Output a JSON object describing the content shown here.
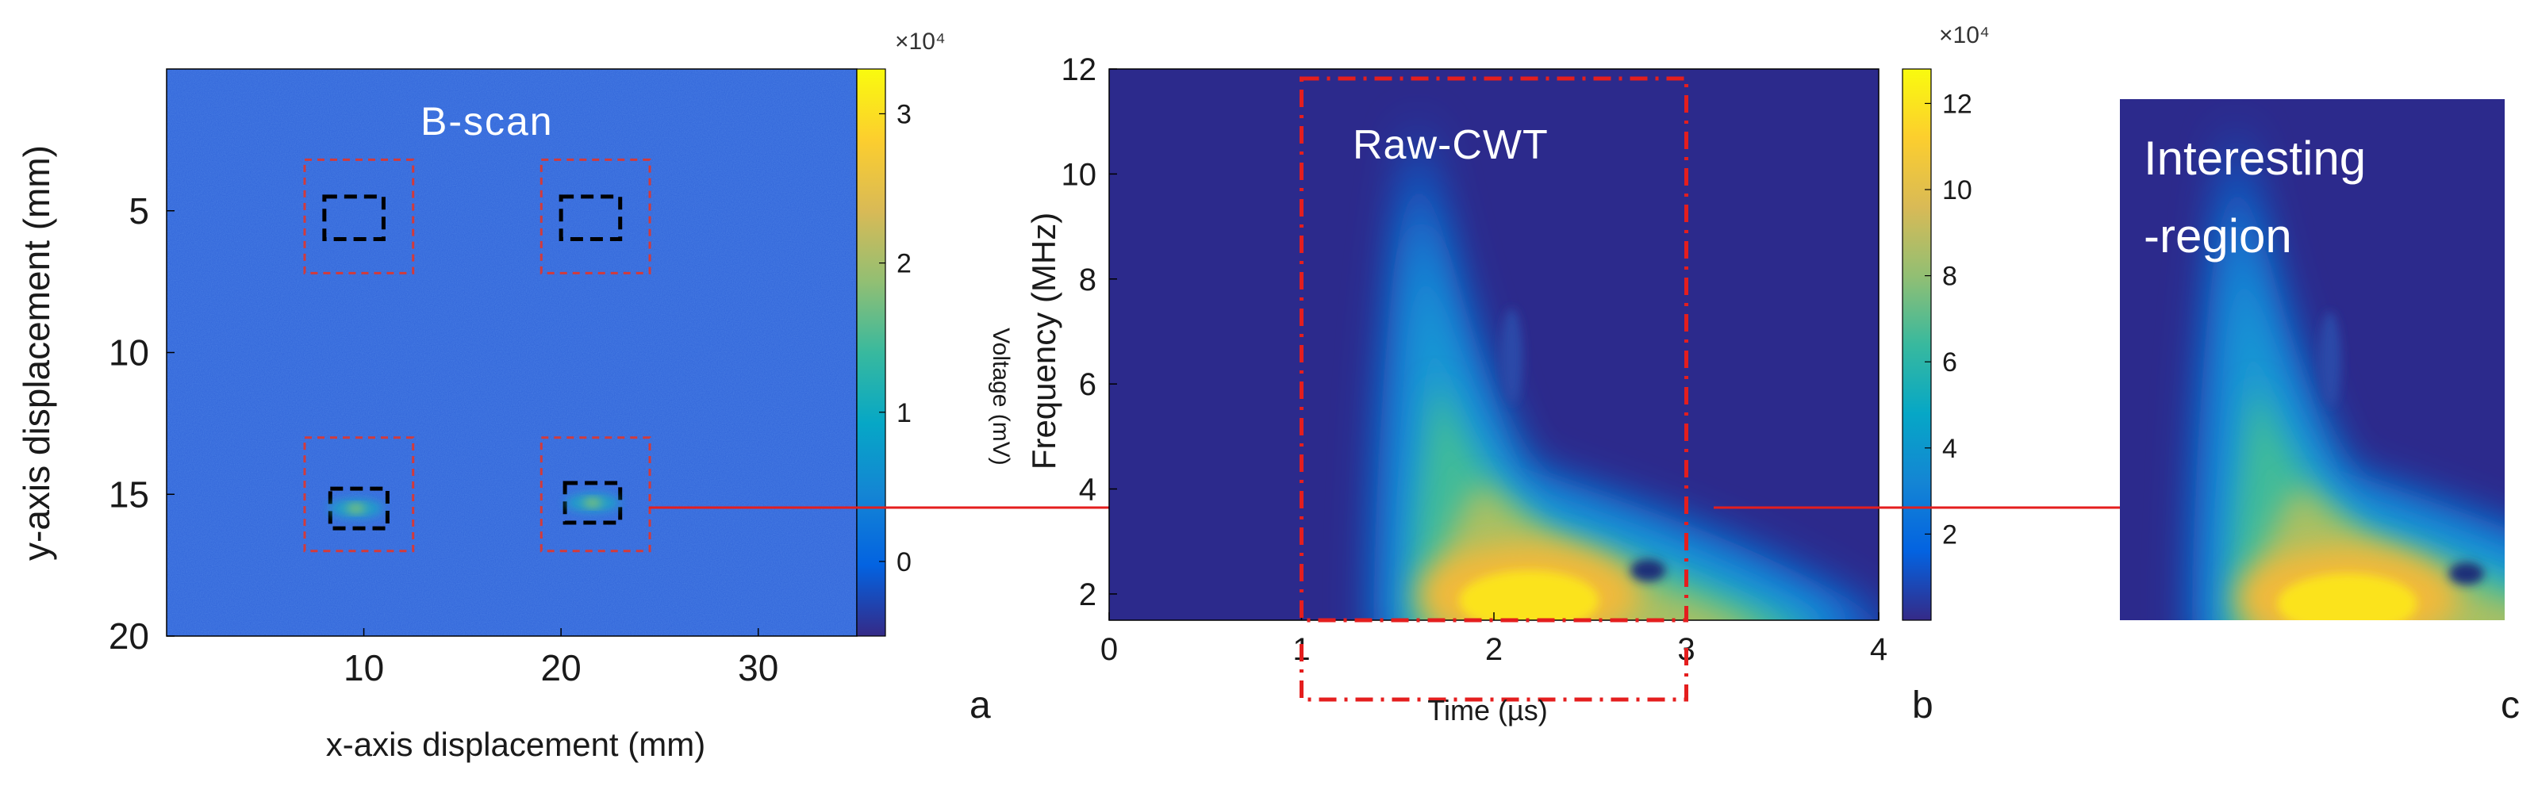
{
  "colors": {
    "bscan_background": "#2e62d8",
    "cwt_background": "#2c2a8c",
    "arrow": "#e41e1e",
    "roi_box": "#d33a3a",
    "inner_box": "#000000",
    "overlay_text": "#ffffff",
    "colormap": [
      "#352a87",
      "#0363e1",
      "#1485d4",
      "#06a7c6",
      "#38b99e",
      "#92bf73",
      "#d9ba56",
      "#fcce2e",
      "#f9fb0e"
    ]
  },
  "chart_data": [
    {
      "id": "a",
      "type": "heatmap",
      "panel_label": "a",
      "title": "B-scan",
      "xlabel": "x-axis displacement (mm)",
      "ylabel": "y-axis displacement (mm)",
      "xlim": [
        0,
        35
      ],
      "ylim": [
        20,
        0
      ],
      "xticks": [
        10,
        20,
        30
      ],
      "yticks": [
        5,
        10,
        15,
        20
      ],
      "defect_regions": [
        {
          "x": [
            7,
            12.5
          ],
          "y": [
            3.2,
            7.2
          ]
        },
        {
          "x": [
            19,
            24.5
          ],
          "y": [
            3.2,
            7.2
          ]
        },
        {
          "x": [
            7,
            12.5
          ],
          "y": [
            13,
            17
          ]
        },
        {
          "x": [
            19,
            24.5
          ],
          "y": [
            13,
            17
          ]
        }
      ],
      "defect_cores": [
        {
          "x": [
            8,
            11
          ],
          "y": [
            4.5,
            6
          ]
        },
        {
          "x": [
            20,
            23
          ],
          "y": [
            4.5,
            6
          ]
        },
        {
          "x": [
            8.3,
            11.2
          ],
          "y": [
            14.8,
            16.2
          ]
        },
        {
          "x": [
            20.2,
            23
          ],
          "y": [
            14.6,
            16
          ]
        }
      ],
      "hotspots": [
        {
          "x": 9.6,
          "y": 15.5,
          "value": 1.4
        },
        {
          "x": 21.6,
          "y": 15.3,
          "value": 1.0
        }
      ],
      "colorbar": {
        "label": "Voltage (mV)",
        "exponent": "×10⁴",
        "range": [
          -0.5,
          3.3
        ],
        "ticks": [
          "0",
          "1",
          "2",
          "3"
        ],
        "tick_values": [
          0,
          1,
          2,
          3
        ]
      }
    },
    {
      "id": "b",
      "type": "heatmap",
      "panel_label": "b",
      "title": "Raw-CWT",
      "xlabel": "Time (µs)",
      "ylabel": "Frequency (MHz)",
      "xlim": [
        0,
        4
      ],
      "ylim": [
        1.5,
        12
      ],
      "xticks": [
        0,
        1,
        2,
        3,
        4
      ],
      "yticks": [
        2,
        4,
        6,
        8,
        10,
        12
      ],
      "selection_window": {
        "x": [
          1,
          3
        ],
        "y": [
          1.5,
          12
        ]
      },
      "peak": {
        "time": 2.1,
        "frequency": 2.6,
        "value": 12.2
      },
      "colorbar": {
        "exponent": "×10⁴",
        "range": [
          0,
          12.8
        ],
        "ticks": [
          "2",
          "4",
          "6",
          "8",
          "10",
          "12"
        ],
        "tick_values": [
          2,
          4,
          6,
          8,
          10,
          12
        ]
      }
    },
    {
      "id": "c",
      "type": "heatmap",
      "panel_label": "c",
      "title_lines": [
        "Interesting",
        "-region"
      ],
      "xlim": [
        1,
        3
      ],
      "ylim": [
        1.5,
        12
      ]
    }
  ]
}
